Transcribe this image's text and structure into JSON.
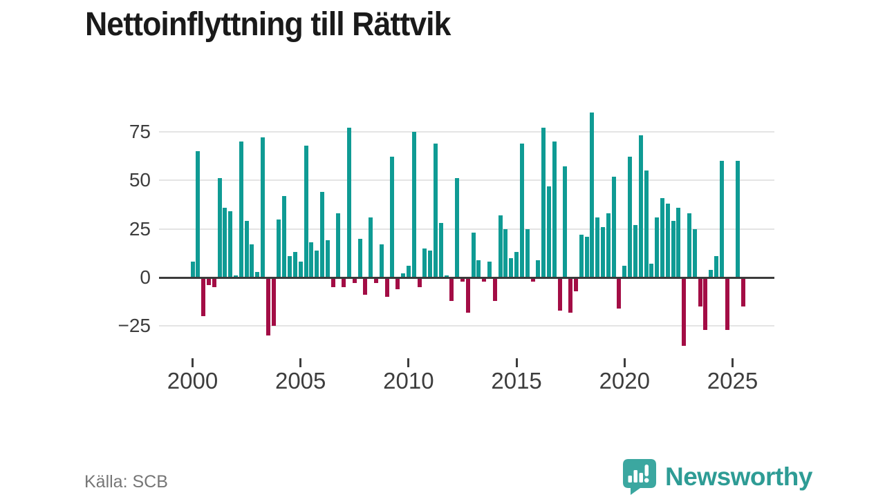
{
  "title": "Nettoinflyttning till Rättvik",
  "source": {
    "label": "Källa: SCB"
  },
  "branding": {
    "name": "Newsworthy",
    "icon": "newsworthy-speech-bubble-bar-chart-icon",
    "icon_color": "#3ba7a0",
    "text_color": "#2e9c95"
  },
  "colors": {
    "positive_bar": "#0f9b94",
    "negative_bar": "#a30d45",
    "gridline": "#e4e4e4",
    "zero_line": "#3b3b3b",
    "axis_text": "#3d3d3d",
    "title_text": "#1a1a1a",
    "source_text": "#767676",
    "background": "#ffffff"
  },
  "chart_data": {
    "type": "bar",
    "title": "Nettoinflyttning till Rättvik",
    "frequency": "quarterly",
    "grid": true,
    "legend": false,
    "colors": {
      "positive": "#0f9b94",
      "negative": "#a30d45"
    },
    "x_axis": {
      "tick_labels": [
        "2000",
        "2005",
        "2010",
        "2015",
        "2020",
        "2025"
      ]
    },
    "y_axis": {
      "tick_labels": [
        "75",
        "50",
        "25",
        "0",
        "−25"
      ],
      "tick_values": [
        75,
        50,
        25,
        0,
        -25
      ],
      "range": [
        -40,
        90
      ]
    },
    "series": [
      {
        "name": "Nettoinflyttning",
        "start": "2000-Q1",
        "end": "2025-Q3",
        "by_year": [
          {
            "year": 2000,
            "values": [
              8,
              65,
              -20,
              -4
            ]
          },
          {
            "year": 2001,
            "values": [
              -5,
              51,
              36,
              34
            ]
          },
          {
            "year": 2002,
            "values": [
              1,
              70,
              29,
              17
            ]
          },
          {
            "year": 2003,
            "values": [
              3,
              72,
              -30,
              -25
            ]
          },
          {
            "year": 2004,
            "values": [
              30,
              42,
              11,
              13
            ]
          },
          {
            "year": 2005,
            "values": [
              8,
              68,
              18,
              14
            ]
          },
          {
            "year": 2006,
            "values": [
              44,
              19,
              -5,
              33
            ]
          },
          {
            "year": 2007,
            "values": [
              -5,
              77,
              -3,
              20
            ]
          },
          {
            "year": 2008,
            "values": [
              -9,
              31,
              -3,
              17
            ]
          },
          {
            "year": 2009,
            "values": [
              -10,
              62,
              -6,
              2
            ]
          },
          {
            "year": 2010,
            "values": [
              6,
              75,
              -5,
              15
            ]
          },
          {
            "year": 2011,
            "values": [
              14,
              69,
              28,
              1
            ]
          },
          {
            "year": 2012,
            "values": [
              -12,
              51,
              -2,
              -18
            ]
          },
          {
            "year": 2013,
            "values": [
              23,
              9,
              -2,
              8
            ]
          },
          {
            "year": 2014,
            "values": [
              -12,
              32,
              25,
              10
            ]
          },
          {
            "year": 2015,
            "values": [
              13,
              69,
              25,
              -2
            ]
          },
          {
            "year": 2016,
            "values": [
              9,
              77,
              47,
              70
            ]
          },
          {
            "year": 2017,
            "values": [
              -17,
              57,
              -18,
              -7
            ]
          },
          {
            "year": 2018,
            "values": [
              22,
              21,
              85,
              31
            ]
          },
          {
            "year": 2019,
            "values": [
              26,
              33,
              52,
              -16
            ]
          },
          {
            "year": 2020,
            "values": [
              6,
              62,
              27,
              73
            ]
          },
          {
            "year": 2021,
            "values": [
              55,
              7,
              31,
              41
            ]
          },
          {
            "year": 2022,
            "values": [
              38,
              29,
              36,
              -35
            ]
          },
          {
            "year": 2023,
            "values": [
              33,
              25,
              -15,
              -27
            ]
          },
          {
            "year": 2024,
            "values": [
              4,
              11,
              60,
              -27
            ]
          },
          {
            "year": 2025,
            "values": [
              0,
              60,
              -15,
              null
            ]
          }
        ]
      }
    ]
  }
}
